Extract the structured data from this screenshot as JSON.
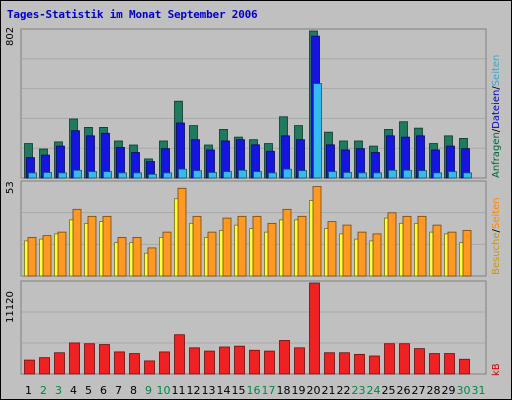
{
  "title": "Tages-Statistik im Monat September 2006",
  "panels": {
    "top": {
      "max_label": "802"
    },
    "mid": {
      "max_label": "53"
    },
    "bottom": {
      "max_label": "11120"
    }
  },
  "legend": {
    "top": [
      {
        "text": "Anfragen",
        "color": "#006633"
      },
      {
        "text": "/",
        "color": "#000000"
      },
      {
        "text": "Dateien",
        "color": "#0000cc"
      },
      {
        "text": "/",
        "color": "#000000"
      },
      {
        "text": "Seiten",
        "color": "#33aacc"
      }
    ],
    "mid": [
      {
        "text": "Besuche",
        "color": "#cc9900"
      },
      {
        "text": "/",
        "color": "#000000"
      },
      {
        "text": "Seiten",
        "color": "#ff8800"
      }
    ],
    "bottom": [
      {
        "text": "kB",
        "color": "#cc0000"
      }
    ]
  },
  "colors": {
    "anfragen": "#1f7a5f",
    "dateien": "#1515dd",
    "seiten_top": "#33bbee",
    "besuche": "#ffff33",
    "seiten_mid": "#ff9922",
    "kb": "#ee2222",
    "weekday": "#000000",
    "weekend": "#008844"
  },
  "chart_data": {
    "type": "bar",
    "categories": [
      "1",
      "2",
      "3",
      "4",
      "5",
      "6",
      "7",
      "8",
      "9",
      "10",
      "11",
      "12",
      "13",
      "14",
      "15",
      "16",
      "17",
      "18",
      "19",
      "20",
      "21",
      "22",
      "23",
      "24",
      "25",
      "26",
      "27",
      "28",
      "29",
      "30",
      "31"
    ],
    "weekend_days": [
      "2",
      "3",
      "9",
      "10",
      "16",
      "17",
      "23",
      "24",
      "30",
      "31"
    ],
    "panels": [
      {
        "name": "top",
        "ylim": [
          0,
          802
        ],
        "series": [
          {
            "name": "Anfragen",
            "values": [
              188,
              158,
              197,
              322,
              276,
              276,
              202,
              180,
              104,
              202,
              419,
              286,
              180,
              265,
              223,
              209,
              188,
              334,
              286,
              802,
              250,
              202,
              202,
              174,
              265,
              307,
              272,
              188,
              230,
              216,
              0
            ]
          },
          {
            "name": "Dateien",
            "values": [
              111,
              125,
              174,
              258,
              230,
              244,
              167,
              139,
              90,
              160,
              300,
              209,
              153,
              202,
              209,
              181,
              146,
              230,
              209,
              774,
              181,
              153,
              160,
              139,
              230,
              223,
              230,
              153,
              174,
              160,
              0
            ]
          },
          {
            "name": "Seiten",
            "values": [
              28,
              30,
              28,
              42,
              35,
              35,
              28,
              28,
              20,
              28,
              48,
              40,
              30,
              35,
              42,
              35,
              28,
              48,
              40,
              515,
              35,
              30,
              28,
              28,
              42,
              42,
              40,
              28,
              35,
              28,
              0
            ]
          }
        ]
      },
      {
        "name": "mid",
        "ylim": [
          0,
          53
        ],
        "series": [
          {
            "name": "Besuche",
            "values": [
              20,
              21,
              24,
              32,
              30,
              31,
              19,
              19,
              13,
              22,
              44,
              30,
              22,
              26,
              29,
              27,
              25,
              32,
              32,
              43,
              27,
              24,
              21,
              20,
              33,
              30,
              30,
              25,
              24,
              19,
              0
            ]
          },
          {
            "name": "Seiten",
            "values": [
              22,
              23,
              25,
              38,
              34,
              34,
              22,
              22,
              16,
              25,
              50,
              34,
              25,
              33,
              34,
              34,
              30,
              38,
              34,
              51,
              31,
              29,
              25,
              24,
              36,
              34,
              34,
              29,
              25,
              26,
              0
            ]
          }
        ]
      },
      {
        "name": "bottom",
        "ylim": [
          0,
          11120
        ],
        "series": [
          {
            "name": "kB",
            "values": [
              1700,
              2000,
              2600,
              3800,
              3700,
              3600,
              2700,
              2500,
              1600,
              2700,
              4800,
              3200,
              2800,
              3300,
              3400,
              2900,
              2800,
              4100,
              3200,
              11120,
              2600,
              2600,
              2400,
              2200,
              3700,
              3700,
              3100,
              2500,
              2500,
              1800,
              0
            ]
          }
        ]
      }
    ]
  }
}
